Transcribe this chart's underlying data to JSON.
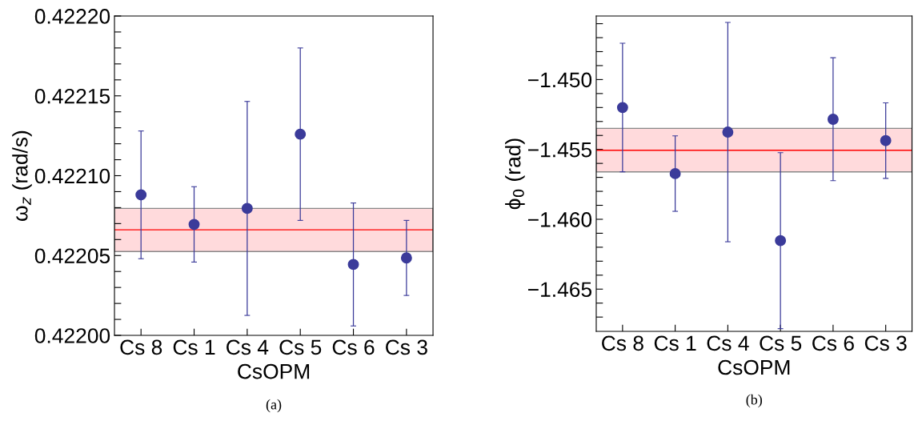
{
  "chart_data": [
    {
      "type": "scatter",
      "xlabel": "CsOPM",
      "ylabel": "ω$_{z}$ (rad/s)",
      "categories": [
        "Cs 8",
        "Cs 1",
        "Cs 4",
        "Cs 5",
        "Cs 6",
        "Cs 3"
      ],
      "values": [
        0.422088,
        0.4220695,
        0.4220795,
        0.422126,
        0.4220444,
        0.4220485
      ],
      "errors": [
        4e-05,
        2.36e-05,
        6.7e-05,
        5.4e-05,
        3.85e-05,
        2.35e-05
      ],
      "color": "#3b3b9a",
      "marker": "circle",
      "grid": false,
      "ylim": [
        0.422,
        0.4222
      ],
      "yticks": [
        {
          "value": 0.422,
          "label": "0.42200"
        },
        {
          "value": 0.42201,
          "label": null
        },
        {
          "value": 0.42202,
          "label": null
        },
        {
          "value": 0.42203,
          "label": null
        },
        {
          "value": 0.42204,
          "label": null
        },
        {
          "value": 0.42205,
          "label": "0.42205"
        },
        {
          "value": 0.42206,
          "label": null
        },
        {
          "value": 0.42207,
          "label": null
        },
        {
          "value": 0.42208,
          "label": null
        },
        {
          "value": 0.42209,
          "label": null
        },
        {
          "value": 0.4221,
          "label": "0.42210"
        },
        {
          "value": 0.42211,
          "label": null
        },
        {
          "value": 0.42212,
          "label": null
        },
        {
          "value": 0.42213,
          "label": null
        },
        {
          "value": 0.42214,
          "label": null
        },
        {
          "value": 0.42215,
          "label": "0.42215"
        },
        {
          "value": 0.42216,
          "label": null
        },
        {
          "value": 0.42217,
          "label": null
        },
        {
          "value": 0.42218,
          "label": null
        },
        {
          "value": 0.42219,
          "label": null
        },
        {
          "value": 0.4222,
          "label": "0.42220"
        }
      ],
      "ref_lines": [
        {
          "axis": "y",
          "value": 0.4220661,
          "color": "#ff0000"
        }
      ],
      "bands": [
        {
          "axis": "y",
          "from": 0.4220525,
          "to": 0.4220795,
          "color": "#ffdadc"
        }
      ],
      "annotations": [
        "(a)"
      ]
    },
    {
      "type": "scatter",
      "xlabel": "CsOPM",
      "ylabel": "ϕ$_{0}$ (rad)",
      "categories": [
        "Cs 8",
        "Cs 1",
        "Cs 4",
        "Cs 5",
        "Cs 6",
        "Cs 3"
      ],
      "values": [
        -1.452,
        -1.45673,
        -1.45376,
        -1.46153,
        -1.45284,
        -1.45437
      ],
      "errors": [
        0.0046,
        0.0027,
        0.00785,
        0.0063,
        0.0044,
        0.0027
      ],
      "color": "#3b3b9a",
      "marker": "circle",
      "grid": false,
      "ylim": [
        -1.46802,
        -1.44545
      ],
      "yticks": [
        {
          "value": -1.467,
          "label": null
        },
        {
          "value": -1.466,
          "label": null
        },
        {
          "value": -1.465,
          "label": "−1.465"
        },
        {
          "value": -1.464,
          "label": null
        },
        {
          "value": -1.463,
          "label": null
        },
        {
          "value": -1.462,
          "label": null
        },
        {
          "value": -1.461,
          "label": null
        },
        {
          "value": -1.46,
          "label": "−1.460"
        },
        {
          "value": -1.459,
          "label": null
        },
        {
          "value": -1.458,
          "label": null
        },
        {
          "value": -1.457,
          "label": null
        },
        {
          "value": -1.456,
          "label": null
        },
        {
          "value": -1.455,
          "label": "−1.455"
        },
        {
          "value": -1.454,
          "label": null
        },
        {
          "value": -1.453,
          "label": null
        },
        {
          "value": -1.452,
          "label": null
        },
        {
          "value": -1.451,
          "label": null
        },
        {
          "value": -1.45,
          "label": "−1.450"
        },
        {
          "value": -1.449,
          "label": null
        },
        {
          "value": -1.448,
          "label": null
        },
        {
          "value": -1.447,
          "label": null
        },
        {
          "value": -1.446,
          "label": null
        }
      ],
      "ref_lines": [
        {
          "axis": "y",
          "value": -1.45506,
          "color": "#ff0000"
        }
      ],
      "bands": [
        {
          "axis": "y",
          "from": -1.45661,
          "to": -1.45349,
          "color": "#ffdadc"
        }
      ],
      "annotations": [
        "(b)"
      ]
    }
  ]
}
